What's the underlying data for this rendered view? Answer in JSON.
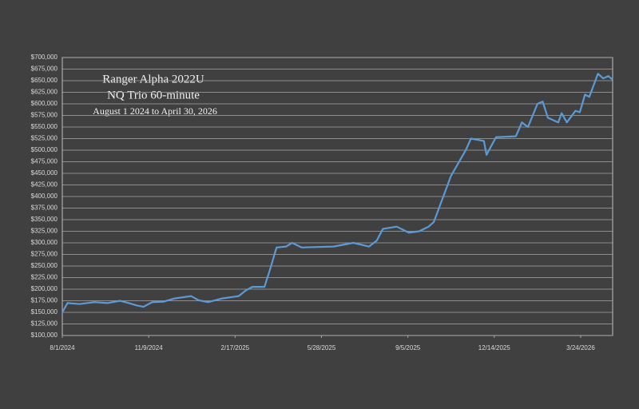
{
  "chart_data": {
    "type": "line",
    "title": "Ranger Alpha 2022U",
    "subtitle": "NQ Trio 60-minute",
    "annotation": "August 1 2024 to April 30, 2026",
    "x": [
      "2024-08-01",
      "2024-08-07",
      "2024-08-21",
      "2024-09-07",
      "2024-09-22",
      "2024-10-07",
      "2024-10-17",
      "2024-10-26",
      "2024-11-03",
      "2024-11-13",
      "2024-11-26",
      "2024-12-09",
      "2024-12-28",
      "2025-01-06",
      "2025-01-17",
      "2025-02-02",
      "2025-02-21",
      "2025-03-02",
      "2025-03-09",
      "2025-03-23",
      "2025-03-29",
      "2025-04-06",
      "2025-04-17",
      "2025-04-24",
      "2025-05-05",
      "2025-06-11",
      "2025-07-04",
      "2025-07-22",
      "2025-07-31",
      "2025-08-07",
      "2025-08-23",
      "2025-09-06",
      "2025-09-18",
      "2025-09-29",
      "2025-10-05",
      "2025-10-16",
      "2025-10-25",
      "2025-11-11",
      "2025-11-17",
      "2025-12-02",
      "2025-12-05",
      "2025-12-16",
      "2026-01-08",
      "2026-01-15",
      "2026-01-22",
      "2026-02-02",
      "2026-02-08",
      "2026-02-14",
      "2026-02-26",
      "2026-03-02",
      "2026-03-08",
      "2026-03-18",
      "2026-03-23",
      "2026-03-29",
      "2026-04-03",
      "2026-04-08",
      "2026-04-13",
      "2026-04-19",
      "2026-04-25",
      "2026-04-30"
    ],
    "series": [
      {
        "color": "#5b9bd5",
        "values": [
          150000,
          170000,
          168000,
          172000,
          170000,
          175000,
          170000,
          165000,
          162000,
          172000,
          173000,
          180000,
          185000,
          176000,
          172000,
          180000,
          185000,
          198000,
          205000,
          205000,
          240000,
          290000,
          292000,
          300000,
          290000,
          292000,
          300000,
          292000,
          305000,
          330000,
          335000,
          322000,
          325000,
          335000,
          345000,
          400000,
          445000,
          500000,
          525000,
          520000,
          490000,
          528000,
          530000,
          560000,
          550000,
          600000,
          605000,
          570000,
          560000,
          580000,
          560000,
          585000,
          582000,
          620000,
          615000,
          640000,
          665000,
          655000,
          660000,
          652000
        ]
      }
    ],
    "xlim": [
      "2024-08-01",
      "2026-04-30"
    ],
    "xticks": [
      {
        "value": "2024-08-01",
        "label": "8/1/2024"
      },
      {
        "value": "2024-11-09",
        "label": "11/9/2024"
      },
      {
        "value": "2025-02-17",
        "label": "2/17/2025"
      },
      {
        "value": "2025-05-28",
        "label": "5/28/2025"
      },
      {
        "value": "2025-09-05",
        "label": "9/5/2025"
      },
      {
        "value": "2025-12-14",
        "label": "12/14/2025"
      },
      {
        "value": "2026-03-24",
        "label": "3/24/2026"
      }
    ],
    "ylim": [
      100000,
      700000
    ],
    "yticks": [
      {
        "value": 100000,
        "label": "$100,000"
      },
      {
        "value": 125000,
        "label": "$125,000"
      },
      {
        "value": 150000,
        "label": "$150,000"
      },
      {
        "value": 175000,
        "label": "$175,000"
      },
      {
        "value": 200000,
        "label": "$200,000"
      },
      {
        "value": 225000,
        "label": "$225,000"
      },
      {
        "value": 250000,
        "label": "$250,000"
      },
      {
        "value": 275000,
        "label": "$275,000"
      },
      {
        "value": 300000,
        "label": "$300,000"
      },
      {
        "value": 325000,
        "label": "$325,000"
      },
      {
        "value": 350000,
        "label": "$350,000"
      },
      {
        "value": 375000,
        "label": "$375,000"
      },
      {
        "value": 400000,
        "label": "$400,000"
      },
      {
        "value": 425000,
        "label": "$425,000"
      },
      {
        "value": 450000,
        "label": "$450,000"
      },
      {
        "value": 475000,
        "label": "$475,000"
      },
      {
        "value": 500000,
        "label": "$500,000"
      },
      {
        "value": 525000,
        "label": "$525,000"
      },
      {
        "value": 550000,
        "label": "$550,000"
      },
      {
        "value": 575000,
        "label": "$575,000"
      },
      {
        "value": 600000,
        "label": "$600,000"
      },
      {
        "value": 625000,
        "label": "$625,000"
      },
      {
        "value": 650000,
        "label": "$650,000"
      },
      {
        "value": 675000,
        "label": "$675,000"
      },
      {
        "value": 700000,
        "label": "$700,000"
      }
    ],
    "grid": true
  }
}
